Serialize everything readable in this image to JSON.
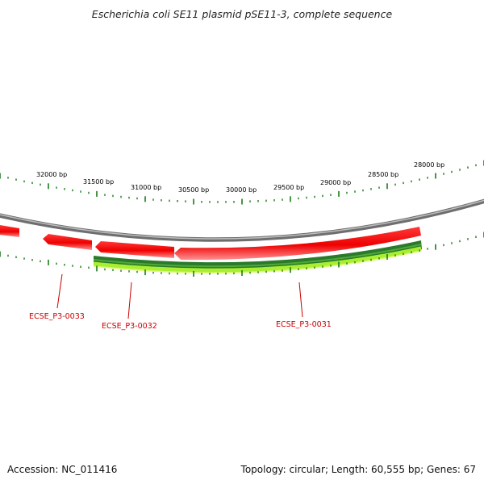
{
  "title": "Escherichia coli SE11 plasmid pSE11-3, complete sequence",
  "footer": {
    "accession": "Accession: NC_011416",
    "summary": "Topology: circular; Length: 60,555 bp; Genes: 67"
  },
  "tick_labels": [
    "32000 bp",
    "31500 bp",
    "31000 bp",
    "30500 bp",
    "30000 bp",
    "29500 bp",
    "29000 bp",
    "28500 bp",
    "28000 bp"
  ],
  "gene_labels": [
    "ECSE_P3-0033",
    "ECSE_P3-0032",
    "ECSE_P3-0031"
  ],
  "colors": {
    "backbone": "#8c8c8c",
    "cds": "#ee0000",
    "cds_highlight": "#ff8080",
    "gene_dark": "#2a7a2a",
    "gene_light": "#aaee33",
    "tick": "#1a7a1a",
    "label": "#cc0000"
  }
}
